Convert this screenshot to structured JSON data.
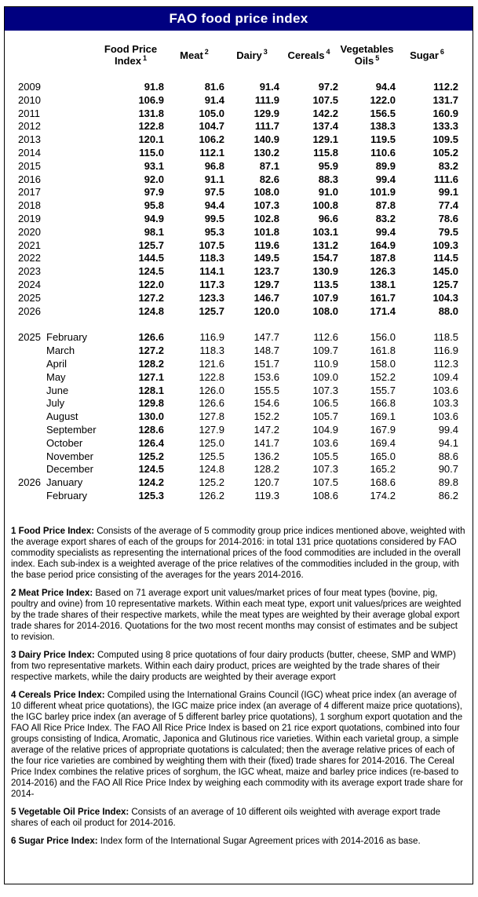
{
  "title": "FAO food price index",
  "colors": {
    "header_bg": "#000080",
    "header_text": "#ffffff",
    "body_text": "#000000",
    "border": "#000000"
  },
  "table": {
    "columns": [
      {
        "label": "Food Price Index",
        "sup": "1"
      },
      {
        "label": "Meat",
        "sup": "2"
      },
      {
        "label": "Dairy",
        "sup": "3"
      },
      {
        "label": "Cereals",
        "sup": "4"
      },
      {
        "label": "Vegetables Oils",
        "sup": "5"
      },
      {
        "label": "Sugar",
        "sup": "6"
      }
    ],
    "year_rows": [
      {
        "year": "2009",
        "values": [
          "91.8",
          "81.6",
          "91.4",
          "97.2",
          "94.4",
          "112.2"
        ]
      },
      {
        "year": "2010",
        "values": [
          "106.9",
          "91.4",
          "111.9",
          "107.5",
          "122.0",
          "131.7"
        ]
      },
      {
        "year": "2011",
        "values": [
          "131.8",
          "105.0",
          "129.9",
          "142.2",
          "156.5",
          "160.9"
        ]
      },
      {
        "year": "2012",
        "values": [
          "122.8",
          "104.7",
          "111.7",
          "137.4",
          "138.3",
          "133.3"
        ]
      },
      {
        "year": "2013",
        "values": [
          "120.1",
          "106.2",
          "140.9",
          "129.1",
          "119.5",
          "109.5"
        ]
      },
      {
        "year": "2014",
        "values": [
          "115.0",
          "112.1",
          "130.2",
          "115.8",
          "110.6",
          "105.2"
        ]
      },
      {
        "year": "2015",
        "values": [
          "93.1",
          "96.8",
          "87.1",
          "95.9",
          "89.9",
          "83.2"
        ]
      },
      {
        "year": "2016",
        "values": [
          "92.0",
          "91.1",
          "82.6",
          "88.3",
          "99.4",
          "111.6"
        ]
      },
      {
        "year": "2017",
        "values": [
          "97.9",
          "97.5",
          "108.0",
          "91.0",
          "101.9",
          "99.1"
        ]
      },
      {
        "year": "2018",
        "values": [
          "95.8",
          "94.4",
          "107.3",
          "100.8",
          "87.8",
          "77.4"
        ]
      },
      {
        "year": "2019",
        "values": [
          "94.9",
          "99.5",
          "102.8",
          "96.6",
          "83.2",
          "78.6"
        ]
      },
      {
        "year": "2020",
        "values": [
          "98.1",
          "95.3",
          "101.8",
          "103.1",
          "99.4",
          "79.5"
        ]
      },
      {
        "year": "2021",
        "values": [
          "125.7",
          "107.5",
          "119.6",
          "131.2",
          "164.9",
          "109.3"
        ]
      },
      {
        "year": "2022",
        "values": [
          "144.5",
          "118.3",
          "149.5",
          "154.7",
          "187.8",
          "114.5"
        ]
      },
      {
        "year": "2023",
        "values": [
          "124.5",
          "114.1",
          "123.7",
          "130.9",
          "126.3",
          "145.0"
        ]
      },
      {
        "year": "2024",
        "values": [
          "122.0",
          "117.3",
          "129.7",
          "113.5",
          "138.1",
          "125.7"
        ]
      },
      {
        "year": "2025",
        "values": [
          "127.2",
          "123.3",
          "146.7",
          "107.9",
          "161.7",
          "104.3"
        ]
      },
      {
        "year": "2026",
        "values": [
          "124.8",
          "125.7",
          "120.0",
          "108.0",
          "171.4",
          "88.0"
        ]
      }
    ],
    "month_rows": [
      {
        "year": "2025",
        "month": "February",
        "values": [
          "126.6",
          "116.9",
          "147.7",
          "112.6",
          "156.0",
          "118.5"
        ]
      },
      {
        "year": "",
        "month": "March",
        "values": [
          "127.2",
          "118.3",
          "148.7",
          "109.7",
          "161.8",
          "116.9"
        ]
      },
      {
        "year": "",
        "month": "April",
        "values": [
          "128.2",
          "121.6",
          "151.7",
          "110.9",
          "158.0",
          "112.3"
        ]
      },
      {
        "year": "",
        "month": "May",
        "values": [
          "127.1",
          "122.8",
          "153.6",
          "109.0",
          "152.2",
          "109.4"
        ]
      },
      {
        "year": "",
        "month": "June",
        "values": [
          "128.1",
          "126.0",
          "155.5",
          "107.3",
          "155.7",
          "103.6"
        ]
      },
      {
        "year": "",
        "month": "July",
        "values": [
          "129.8",
          "126.6",
          "154.6",
          "106.5",
          "166.8",
          "103.3"
        ]
      },
      {
        "year": "",
        "month": "August",
        "values": [
          "130.0",
          "127.8",
          "152.2",
          "105.7",
          "169.1",
          "103.6"
        ]
      },
      {
        "year": "",
        "month": "September",
        "values": [
          "128.6",
          "127.9",
          "147.2",
          "104.9",
          "167.9",
          "99.4"
        ]
      },
      {
        "year": "",
        "month": "October",
        "values": [
          "126.4",
          "125.0",
          "141.7",
          "103.6",
          "169.4",
          "94.1"
        ]
      },
      {
        "year": "",
        "month": "November",
        "values": [
          "125.2",
          "125.5",
          "136.2",
          "105.5",
          "165.0",
          "88.6"
        ]
      },
      {
        "year": "",
        "month": "December",
        "values": [
          "124.5",
          "124.8",
          "128.2",
          "107.3",
          "165.2",
          "90.7"
        ]
      },
      {
        "year": "2026",
        "month": "January",
        "values": [
          "124.2",
          "125.2",
          "120.7",
          "107.5",
          "168.6",
          "89.8"
        ]
      },
      {
        "year": "",
        "month": "February",
        "values": [
          "125.3",
          "126.2",
          "119.3",
          "108.6",
          "174.2",
          "86.2"
        ]
      }
    ]
  },
  "footnotes": [
    {
      "lead": "1 Food Price Index:",
      "text": "Consists of the average of 5 commodity group price indices mentioned above, weighted with the average export shares of each of the groups for 2014-2016: in total 131 price quotations considered by FAO commodity specialists as representing the international prices of the food commodities are included in the overall index. Each sub-index is a weighted average of the price relatives of the commodities included in the group, with the base period price consisting of the averages for the years 2014-2016."
    },
    {
      "lead": "2 Meat Price Index:",
      "text": "Based on 71 average export unit values/market prices of four meat types (bovine, pig, poultry and ovine) from 10 representative markets. Within each meat type, export unit values/prices are weighted by the trade shares of their respective markets, while the meat types are weighted by their average global export trade shares for 2014-2016. Quotations for the two most recent months may consist of estimates and be subject to revision."
    },
    {
      "lead": "3 Dairy Price Index:",
      "text": "Computed using 8 price quotations of four dairy products (butter, cheese, SMP and WMP) from two representative markets. Within each dairy product, prices are weighted by the trade shares of their respective markets, while the dairy products are weighted by their average export"
    },
    {
      "lead": "4 Cereals Price Index:",
      "text": "Compiled using the International Grains Council (IGC) wheat price index (an average of 10 different wheat price quotations), the IGC maize price index (an average of 4 different maize price quotations), the IGC barley price index (an average of 5 different barley price quotations), 1 sorghum export quotation and the FAO All Rice Price Index. The FAO All Rice Price Index is based on 21 rice export quotations, combined into four groups consisting of Indica, Aromatic, Japonica and Glutinous rice varieties. Within each varietal group, a simple average of the relative prices of appropriate quotations is calculated; then the average relative prices of each of the four rice varieties are combined by weighting them with their (fixed) trade shares for 2014-2016. The Cereal Price Index combines the relative prices of sorghum, the IGC wheat, maize and barley price indices (re-based to 2014-2016) and the FAO All Rice Price Index by weighing each commodity with its average export trade share for 2014-"
    },
    {
      "lead": "5 Vegetable Oil Price Index:",
      "text": "Consists of an average of 10 different oils weighted with average export trade shares of each oil product for 2014-2016."
    },
    {
      "lead": "6 Sugar Price Index:",
      "text": "Index form of the International Sugar Agreement prices with 2014-2016 as base."
    }
  ]
}
